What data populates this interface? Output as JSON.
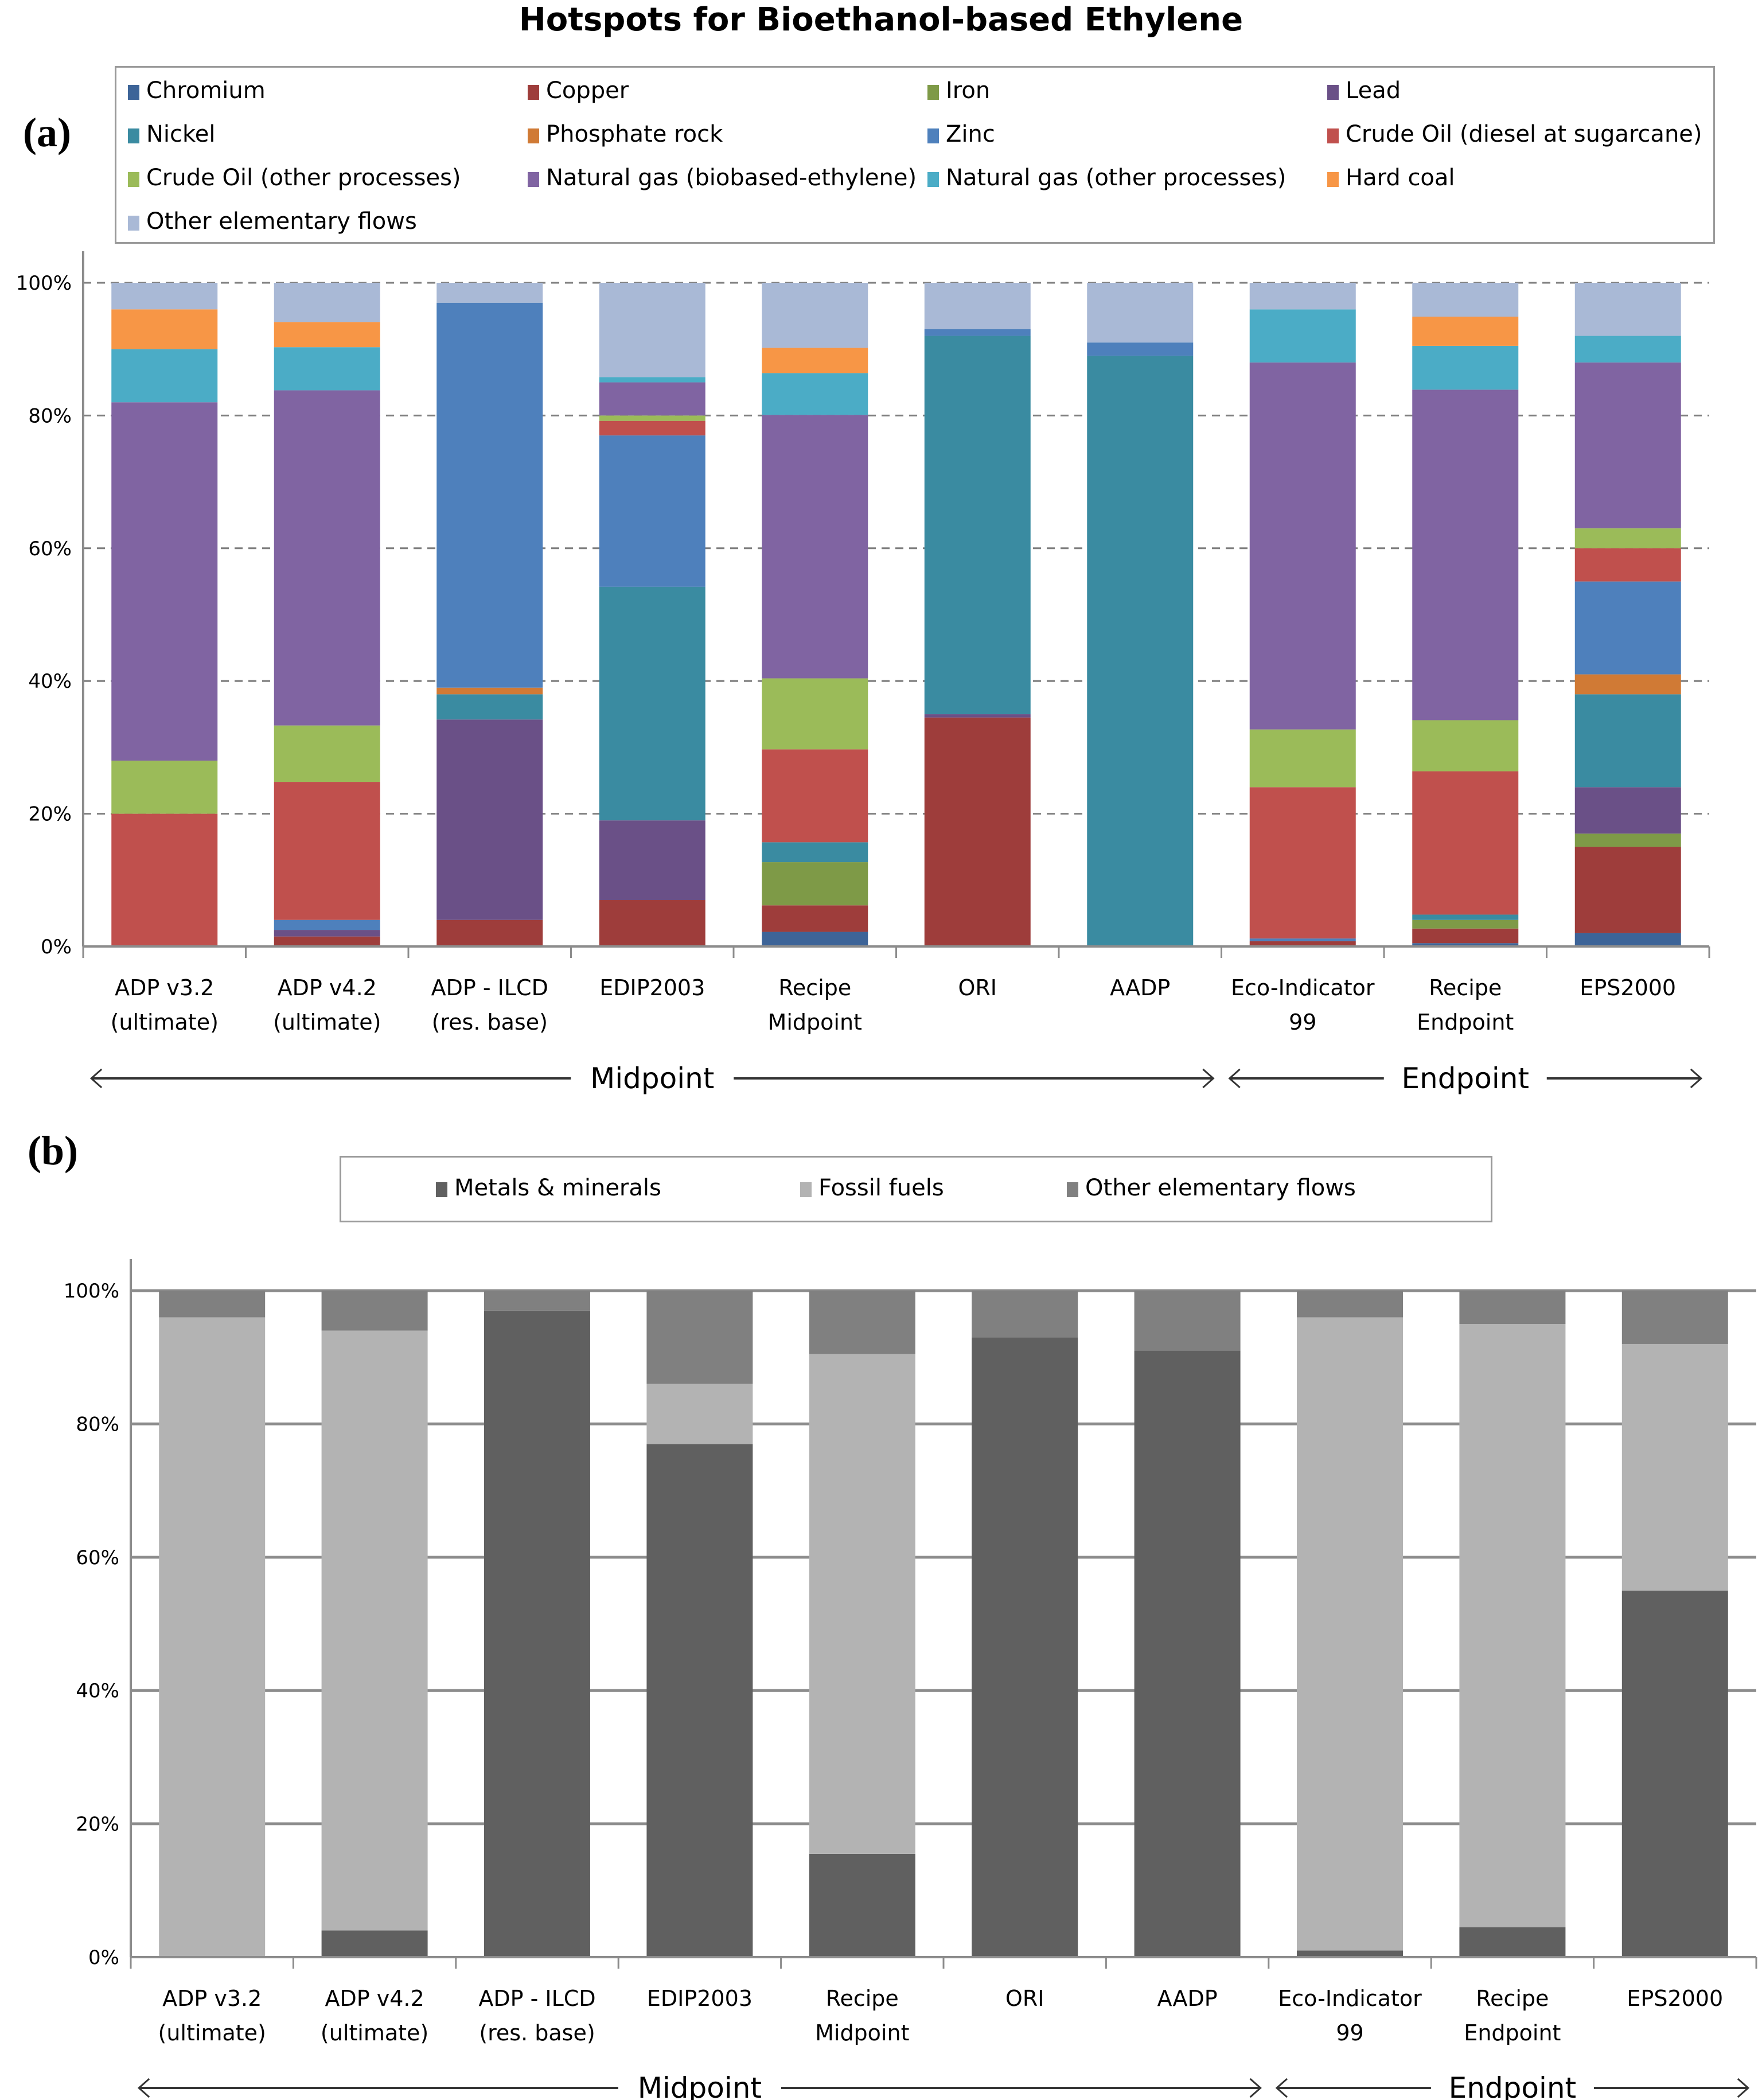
{
  "title": "Hotspots for Bioethanol-based Ethylene",
  "chart_data": [
    {
      "panel": "(a)",
      "type": "bar",
      "stacked": true,
      "title": "Hotspots for Bioethanol-based Ethylene",
      "xlabel": "",
      "ylabel": "",
      "ylim": [
        0,
        100
      ],
      "yticks": [
        "0%",
        "20%",
        "40%",
        "60%",
        "80%",
        "100%"
      ],
      "grid": "dashed horizontal",
      "legend_position": "top",
      "categories": [
        [
          "ADP v3.2",
          "(ultimate)"
        ],
        [
          "ADP v4.2",
          "(ultimate)"
        ],
        [
          "ADP - ILCD",
          "(res. base)"
        ],
        [
          "EDIP2003"
        ],
        [
          "Recipe",
          "Midpoint"
        ],
        [
          "ORI"
        ],
        [
          "AADP"
        ],
        [
          "Eco-Indicator",
          "99"
        ],
        [
          "Recipe",
          "Endpoint"
        ],
        [
          "EPS2000"
        ]
      ],
      "groups": [
        {
          "label": "Midpoint",
          "from": 0,
          "to": 6
        },
        {
          "label": "Endpoint",
          "from": 7,
          "to": 9
        }
      ],
      "series": [
        {
          "name": "Chromium",
          "color": "#3D6498",
          "values": [
            0,
            0,
            0,
            0,
            2.2,
            0,
            0,
            0,
            0.5,
            2
          ]
        },
        {
          "name": "Copper",
          "color": "#9E3D3B",
          "values": [
            0,
            1.5,
            4,
            7,
            4,
            34.5,
            0,
            0.8,
            2.2,
            13
          ]
        },
        {
          "name": "Iron",
          "color": "#7E9A47",
          "values": [
            0,
            0,
            0,
            0,
            6.5,
            0,
            0,
            0,
            1.3,
            2
          ]
        },
        {
          "name": "Lead",
          "color": "#6A5087",
          "values": [
            0,
            1,
            30.2,
            12,
            0,
            0.5,
            0,
            0,
            0,
            7
          ]
        },
        {
          "name": "Nickel",
          "color": "#3A8BA1",
          "values": [
            0,
            0,
            3.8,
            35.2,
            3,
            57,
            89,
            0,
            0.8,
            14
          ]
        },
        {
          "name": "Phosphate rock",
          "color": "#D07A35",
          "values": [
            0,
            0,
            1,
            0,
            0,
            0,
            0,
            0,
            0,
            3
          ]
        },
        {
          "name": "Zinc",
          "color": "#4E80BC",
          "values": [
            0,
            1.5,
            58,
            22.8,
            0,
            1,
            2,
            0.4,
            0,
            14
          ]
        },
        {
          "name": "Crude Oil (diesel at sugarcane)",
          "color": "#C0504D",
          "values": [
            20,
            20.8,
            0,
            2.2,
            14,
            0,
            0,
            22.8,
            21.6,
            5
          ]
        },
        {
          "name": "Crude Oil (other processes)",
          "color": "#9BBB59",
          "values": [
            8,
            8.5,
            0,
            0.8,
            10.7,
            0,
            0,
            8.7,
            7.7,
            3
          ]
        },
        {
          "name": "Natural gas (biobased-ethylene)",
          "color": "#8064A2",
          "values": [
            54,
            50.5,
            0,
            5,
            39.7,
            0,
            0,
            55.3,
            49.8,
            25
          ]
        },
        {
          "name": "Natural gas (other processes)",
          "color": "#4BACC6",
          "values": [
            8,
            6.5,
            0,
            0.8,
            6.3,
            0,
            0,
            8,
            6.6,
            4
          ]
        },
        {
          "name": "Hard coal",
          "color": "#F79646",
          "values": [
            6,
            3.8,
            0,
            0,
            3.8,
            0,
            0,
            0,
            4.4,
            0
          ]
        },
        {
          "name": "Other elementary flows",
          "color": "#A9B9D6",
          "values": [
            4,
            5.9,
            3,
            14.2,
            9.8,
            7,
            9,
            4,
            5.1,
            8
          ]
        }
      ]
    },
    {
      "panel": "(b)",
      "type": "bar",
      "stacked": true,
      "title": "",
      "xlabel": "",
      "ylabel": "",
      "ylim": [
        0,
        100
      ],
      "yticks": [
        "0%",
        "20%",
        "40%",
        "60%",
        "80%",
        "100%"
      ],
      "grid": "solid horizontal",
      "legend_position": "top",
      "categories": [
        [
          "ADP v3.2",
          "(ultimate)"
        ],
        [
          "ADP v4.2",
          "(ultimate)"
        ],
        [
          "ADP - ILCD",
          "(res. base)"
        ],
        [
          "EDIP2003"
        ],
        [
          "Recipe",
          "Midpoint"
        ],
        [
          "ORI"
        ],
        [
          "AADP"
        ],
        [
          "Eco-Indicator",
          "99"
        ],
        [
          "Recipe",
          "Endpoint"
        ],
        [
          "EPS2000"
        ]
      ],
      "groups": [
        {
          "label": "Midpoint",
          "from": 0,
          "to": 6
        },
        {
          "label": "Endpoint",
          "from": 7,
          "to": 9
        }
      ],
      "series": [
        {
          "name": "Metals & minerals",
          "color": "#606060",
          "values": [
            0,
            4,
            97,
            77,
            15.5,
            93,
            91,
            1,
            4.5,
            55
          ]
        },
        {
          "name": "Fossil fuels",
          "color": "#B3B3B3",
          "values": [
            96,
            90,
            0,
            9,
            75,
            0,
            0,
            95,
            90.5,
            37
          ]
        },
        {
          "name": "Other elementary flows",
          "color": "#808080",
          "values": [
            4,
            6,
            3,
            14,
            9.5,
            7,
            9,
            4,
            5,
            8
          ]
        }
      ]
    }
  ]
}
